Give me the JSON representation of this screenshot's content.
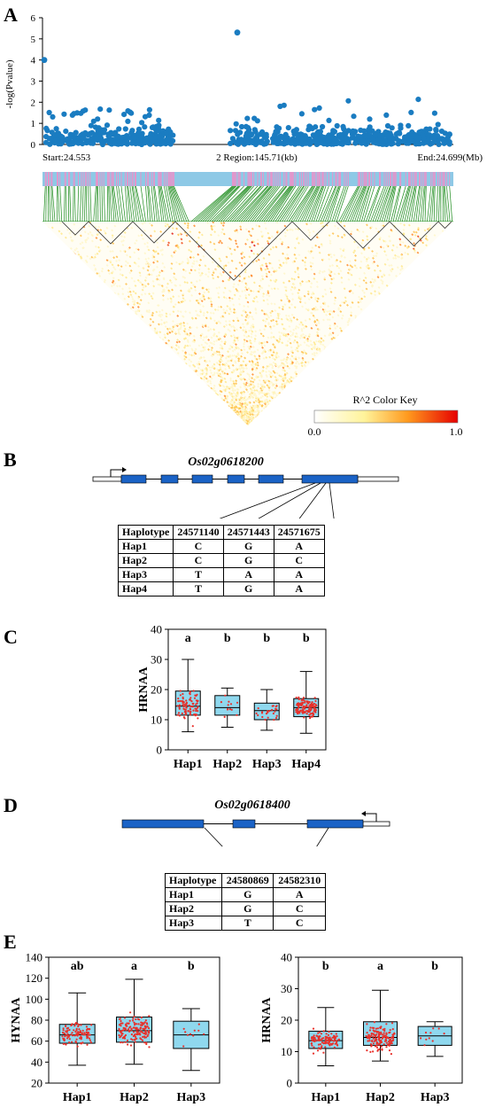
{
  "panels": {
    "a": "A",
    "b": "B",
    "c": "C",
    "d": "D",
    "e": "E"
  },
  "panel_a": {
    "ylabel": "-log(Pvalue)",
    "yticks": [
      "0",
      "1",
      "2",
      "3",
      "4",
      "5",
      "6"
    ],
    "start_label": "Start:24.553",
    "region_label": "2 Region:145.71(kb)",
    "end_label": "End:24.699(Mb)",
    "colorkey_title": "R^2 Color Key",
    "colorkey_min": "0.0",
    "colorkey_max": "1.0",
    "point_color": "#1a7cc1"
  },
  "panel_b": {
    "gene": "Os02g0618200",
    "table": {
      "header": [
        "Haplotype",
        "24571140",
        "24571443",
        "24571675"
      ],
      "rows": [
        [
          "Hap1",
          "C",
          "G",
          "A"
        ],
        [
          "Hap2",
          "C",
          "G",
          "C"
        ],
        [
          "Hap3",
          "T",
          "A",
          "A"
        ],
        [
          "Hap4",
          "T",
          "G",
          "A"
        ]
      ]
    }
  },
  "panel_d": {
    "gene": "Os02g0618400",
    "table": {
      "header": [
        "Haplotype",
        "24580869",
        "24582310"
      ],
      "rows": [
        [
          "Hap1",
          "G",
          "A"
        ],
        [
          "Hap2",
          "G",
          "C"
        ],
        [
          "Hap3",
          "T",
          "C"
        ]
      ]
    }
  },
  "chart_data": [
    {
      "type": "scatter",
      "title": "",
      "xlabel": "",
      "ylabel": "-log(Pvalue)",
      "ylim": [
        0,
        6
      ],
      "highlights": [
        {
          "y": 5.3
        },
        {
          "y": 4.0
        }
      ],
      "note": "Manhattan-style plot; most points between 0 and 2.5"
    },
    {
      "type": "box",
      "ylabel": "HRNAA",
      "categories": [
        "Hap1",
        "Hap2",
        "Hap3",
        "Hap4"
      ],
      "ylim": [
        0,
        40
      ],
      "yticks": [
        "0",
        "10",
        "20",
        "30",
        "40"
      ],
      "letters": [
        "a",
        "b",
        "b",
        "b"
      ],
      "boxes": [
        {
          "min": 6,
          "q1": 11.5,
          "median": 14.5,
          "q3": 19.5,
          "max": 30
        },
        {
          "min": 7.5,
          "q1": 11.5,
          "median": 14,
          "q3": 18,
          "max": 20.5
        },
        {
          "min": 6.5,
          "q1": 10,
          "median": 13,
          "q3": 15.5,
          "max": 20
        },
        {
          "min": 5.5,
          "q1": 11,
          "median": 14,
          "q3": 17,
          "max": 26
        }
      ],
      "fill": "#8fd8ee"
    },
    {
      "type": "box",
      "ylabel": "HYNAA",
      "categories": [
        "Hap1",
        "Hap2",
        "Hap3"
      ],
      "ylim": [
        20,
        140
      ],
      "yticks": [
        "20",
        "40",
        "60",
        "80",
        "100",
        "120",
        "140"
      ],
      "letters": [
        "ab",
        "a",
        "b"
      ],
      "boxes": [
        {
          "min": 37,
          "q1": 58,
          "median": 66,
          "q3": 76,
          "max": 106
        },
        {
          "min": 38,
          "q1": 59,
          "median": 70,
          "q3": 83,
          "max": 119
        },
        {
          "min": 32,
          "q1": 53,
          "median": 66,
          "q3": 79,
          "max": 91
        }
      ],
      "fill": "#8fd8ee"
    },
    {
      "type": "box",
      "ylabel": "HRNAA",
      "categories": [
        "Hap1",
        "Hap2",
        "Hap3"
      ],
      "ylim": [
        0,
        40
      ],
      "yticks": [
        "0",
        "10",
        "20",
        "30",
        "40"
      ],
      "letters": [
        "b",
        "a",
        "b"
      ],
      "boxes": [
        {
          "min": 5.5,
          "q1": 11,
          "median": 13.5,
          "q3": 16.5,
          "max": 24
        },
        {
          "min": 7,
          "q1": 12,
          "median": 14.5,
          "q3": 19.5,
          "max": 29.5
        },
        {
          "min": 8.5,
          "q1": 12,
          "median": 15,
          "q3": 18,
          "max": 19.5
        }
      ],
      "fill": "#8fd8ee"
    }
  ]
}
